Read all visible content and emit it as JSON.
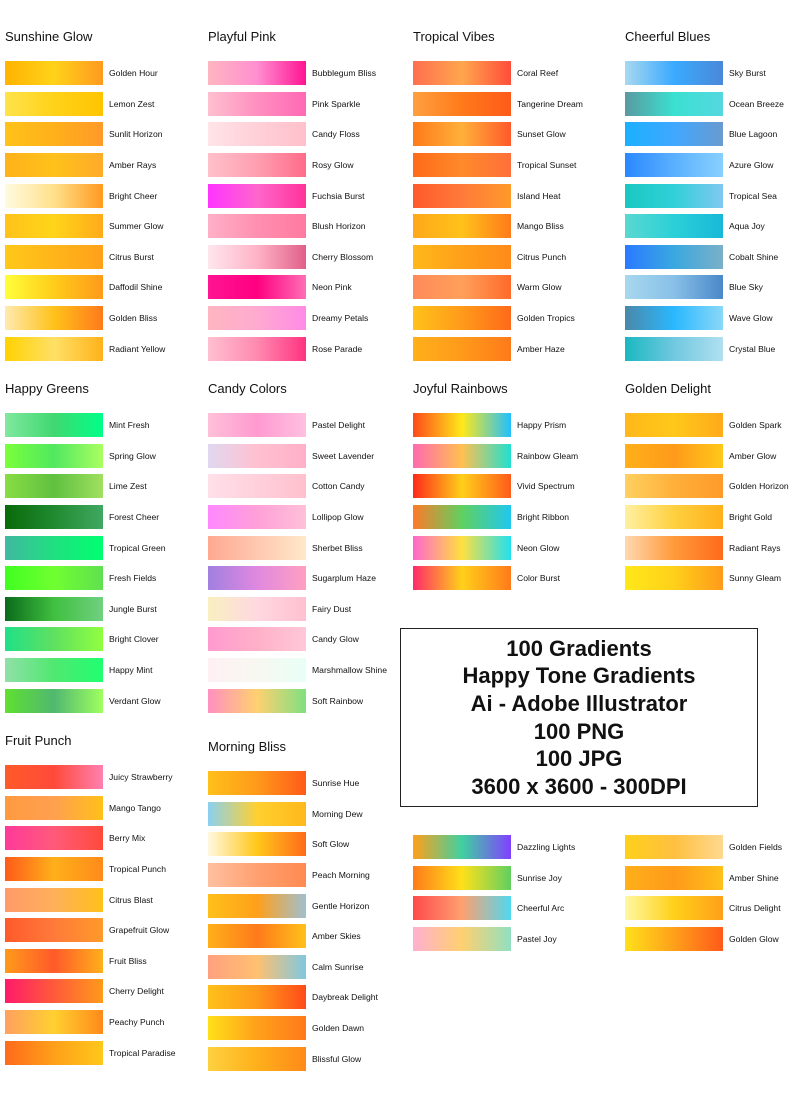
{
  "groups": [
    {
      "title": "Sunshine Glow",
      "items": [
        {
          "label": "Golden Hour",
          "colors": [
            "#ffb300",
            "#ffd21a",
            "#ff9a1f"
          ]
        },
        {
          "label": "Lemon Zest",
          "colors": [
            "#ffe34a",
            "#ffd21a",
            "#ffc400"
          ]
        },
        {
          "label": "Sunlit Horizon",
          "colors": [
            "#ffc21a",
            "#ffb01a",
            "#ff9a2a"
          ]
        },
        {
          "label": "Amber Rays",
          "colors": [
            "#ffb21a",
            "#ffc11a",
            "#ffab2a"
          ]
        },
        {
          "label": "Bright Cheer",
          "colors": [
            "#fffbe0",
            "#ffe08a",
            "#ff9a1f"
          ]
        },
        {
          "label": "Summer Glow",
          "colors": [
            "#ffc21a",
            "#ffd51a",
            "#ffaa1a"
          ]
        },
        {
          "label": "Citrus Burst",
          "colors": [
            "#ffc81a",
            "#ffb51a",
            "#ffa11a"
          ]
        },
        {
          "label": "Daffodil Shine",
          "colors": [
            "#ffff3a",
            "#ffcc1a",
            "#ff9a1a"
          ]
        },
        {
          "label": "Golden Bliss",
          "colors": [
            "#ffeab0",
            "#ffc21a",
            "#ff7a1a"
          ]
        },
        {
          "label": "Radiant Yellow",
          "colors": [
            "#ffd200",
            "#ffe066",
            "#ffb21a"
          ]
        }
      ]
    },
    {
      "title": "Playful Pink",
      "items": [
        {
          "label": "Bubblegum Bliss",
          "colors": [
            "#ffb6c1",
            "#ff8fd0",
            "#ff1493"
          ]
        },
        {
          "label": "Pink Sparkle",
          "colors": [
            "#ffc0d0",
            "#ff8fc0",
            "#ff69b4"
          ]
        },
        {
          "label": "Candy Floss",
          "colors": [
            "#ffe4e8",
            "#ffd0d8",
            "#ffc0cb"
          ]
        },
        {
          "label": "Rosy Glow",
          "colors": [
            "#ffc0cb",
            "#ff9fb0",
            "#ff6b8a"
          ]
        },
        {
          "label": "Fuchsia Burst",
          "colors": [
            "#ff33ff",
            "#ff66cc",
            "#ff3399"
          ]
        },
        {
          "label": "Blush Horizon",
          "colors": [
            "#ffb0c8",
            "#ff8fb0",
            "#ff7aa0"
          ]
        },
        {
          "label": "Cherry Blossom",
          "colors": [
            "#ffe6ee",
            "#ffb3c6",
            "#e0608a"
          ]
        },
        {
          "label": "Neon Pink",
          "colors": [
            "#ff1493",
            "#ff0080",
            "#ff6fb5"
          ]
        },
        {
          "label": "Dreamy Petals",
          "colors": [
            "#ffb6c1",
            "#ffaad0",
            "#ff8ae6"
          ]
        },
        {
          "label": "Rose Parade",
          "colors": [
            "#ffc0d0",
            "#ff8ab0",
            "#ff3380"
          ]
        }
      ]
    },
    {
      "title": "Tropical Vibes",
      "items": [
        {
          "label": "Coral Reef",
          "colors": [
            "#ff6f4f",
            "#ffa64d",
            "#ff4d3a"
          ]
        },
        {
          "label": "Tangerine Dream",
          "colors": [
            "#ffa040",
            "#ff7a1a",
            "#ff5a1a"
          ]
        },
        {
          "label": "Sunset Glow",
          "colors": [
            "#ff7a1a",
            "#ffb03a",
            "#ff5a2a"
          ]
        },
        {
          "label": "Tropical Sunset",
          "colors": [
            "#ff6a1a",
            "#ff8a2a",
            "#ff6f3a"
          ]
        },
        {
          "label": "Island Heat",
          "colors": [
            "#ff5a2a",
            "#ff7a3a",
            "#ff9a2a"
          ]
        },
        {
          "label": "Mango Bliss",
          "colors": [
            "#ffa81a",
            "#ffc21a",
            "#ff7a1a"
          ]
        },
        {
          "label": "Citrus Punch",
          "colors": [
            "#ffb81a",
            "#ffa01a",
            "#ff8a1a"
          ]
        },
        {
          "label": "Warm Glow",
          "colors": [
            "#ff8a5a",
            "#ffa05a",
            "#ff6a2a"
          ]
        },
        {
          "label": "Golden Tropics",
          "colors": [
            "#ffc21a",
            "#ff9a1a",
            "#ff6a1a"
          ]
        },
        {
          "label": "Amber Haze",
          "colors": [
            "#ffb01a",
            "#ff9a1a",
            "#ff7a1a"
          ]
        }
      ]
    },
    {
      "title": "Cheerful Blues",
      "items": [
        {
          "label": "Sky Burst",
          "colors": [
            "#a8d8f0",
            "#3aaaff",
            "#4a88d8"
          ]
        },
        {
          "label": "Ocean Breeze",
          "colors": [
            "#5a9aa0",
            "#3ae0d0",
            "#55d8e0"
          ]
        },
        {
          "label": "Blue Lagoon",
          "colors": [
            "#1ab0ff",
            "#40a8ff",
            "#6a9ad0"
          ]
        },
        {
          "label": "Azure Glow",
          "colors": [
            "#2a88ff",
            "#5ab0ff",
            "#88d0ff"
          ]
        },
        {
          "label": "Tropical Sea",
          "colors": [
            "#1ac8c0",
            "#30d0d8",
            "#80c8f0"
          ]
        },
        {
          "label": "Aqua Joy",
          "colors": [
            "#5ad8d0",
            "#2ad0d8",
            "#18b8d8"
          ]
        },
        {
          "label": "Cobalt Shine",
          "colors": [
            "#2a7aff",
            "#3aa8e0",
            "#7ab0c8"
          ]
        },
        {
          "label": "Blue Sky",
          "colors": [
            "#a8d8ee",
            "#88c0e8",
            "#4a88c8"
          ]
        },
        {
          "label": "Wave Glow",
          "colors": [
            "#4a88a8",
            "#2ab8ff",
            "#8ad8f8"
          ]
        },
        {
          "label": "Crystal Blue",
          "colors": [
            "#1ab8c0",
            "#70c8e0",
            "#b0e0f0"
          ]
        }
      ]
    },
    {
      "title": "Happy Greens",
      "items": [
        {
          "label": "Mint Fresh",
          "colors": [
            "#80e8a0",
            "#40d870",
            "#00ff88"
          ]
        },
        {
          "label": "Spring Glow",
          "colors": [
            "#7aff3a",
            "#50e860",
            "#aaff60"
          ]
        },
        {
          "label": "Lime Zest",
          "colors": [
            "#88dd44",
            "#60c040",
            "#a0e060"
          ]
        },
        {
          "label": "Forest Cheer",
          "colors": [
            "#0a6a0a",
            "#208a30",
            "#40a860"
          ]
        },
        {
          "label": "Tropical Green",
          "colors": [
            "#40b8a0",
            "#20e080",
            "#00ff70"
          ]
        },
        {
          "label": "Fresh Fields",
          "colors": [
            "#40ff20",
            "#70ff30",
            "#60e050"
          ]
        },
        {
          "label": "Jungle Burst",
          "colors": [
            "#0a6a1a",
            "#40c040",
            "#70d080"
          ]
        },
        {
          "label": "Bright Clover",
          "colors": [
            "#20e088",
            "#60e060",
            "#90ff40"
          ]
        },
        {
          "label": "Happy Mint",
          "colors": [
            "#90e0a8",
            "#50e870",
            "#20ff70"
          ]
        },
        {
          "label": "Verdant Glow",
          "colors": [
            "#60e030",
            "#50b870",
            "#a0ff60"
          ]
        }
      ]
    },
    {
      "title": "Candy Colors",
      "items": [
        {
          "label": "Pastel Delight",
          "colors": [
            "#ffc0d8",
            "#ff9ad0",
            "#ffc0e0"
          ]
        },
        {
          "label": "Sweet Lavender",
          "colors": [
            "#e0d8f0",
            "#ffc0d0",
            "#ffb0c8"
          ]
        },
        {
          "label": "Cotton Candy",
          "colors": [
            "#ffe0e8",
            "#ffd0dc",
            "#ffc0cc"
          ]
        },
        {
          "label": "Lollipop Glow",
          "colors": [
            "#ff88ff",
            "#ffa0d8",
            "#ffc0d8"
          ]
        },
        {
          "label": "Sherbet Bliss",
          "colors": [
            "#ffa890",
            "#ffc8b0",
            "#ffe8c8"
          ]
        },
        {
          "label": "Sugarplum Haze",
          "colors": [
            "#a080e0",
            "#e088e0",
            "#ffa0c0"
          ]
        },
        {
          "label": "Fairy Dust",
          "colors": [
            "#f8f0c0",
            "#ffd8e0",
            "#ffc0d0"
          ]
        },
        {
          "label": "Candy Glow",
          "colors": [
            "#ff9ad0",
            "#ffb0c8",
            "#ffc8d8"
          ]
        },
        {
          "label": "Marshmallow Shine",
          "colors": [
            "#fff0f4",
            "#f8f8f0",
            "#e8fff8"
          ]
        },
        {
          "label": "Soft Rainbow",
          "colors": [
            "#ff90c0",
            "#ffd070",
            "#80e080"
          ]
        }
      ]
    },
    {
      "title": "Joyful Rainbows",
      "items": [
        {
          "label": "Happy Prism",
          "colors": [
            "#ff4a1a",
            "#ffe81a",
            "#20c0ff"
          ]
        },
        {
          "label": "Rainbow Gleam",
          "colors": [
            "#ff6ab0",
            "#ffc050",
            "#20e0d0"
          ]
        },
        {
          "label": "Vivid Spectrum",
          "colors": [
            "#ff2a1a",
            "#ffd01a",
            "#ff5a1a"
          ]
        },
        {
          "label": "Bright Ribbon",
          "colors": [
            "#ff7a2a",
            "#60d060",
            "#20c8f0"
          ]
        },
        {
          "label": "Neon Glow",
          "colors": [
            "#ff66cc",
            "#ffe040",
            "#20e0f0"
          ]
        },
        {
          "label": "Color Burst",
          "colors": [
            "#ff2a6a",
            "#ffd01a",
            "#ff7a1a"
          ]
        }
      ]
    },
    {
      "title": "Golden Delight",
      "items": [
        {
          "label": "Golden Spark",
          "colors": [
            "#ffb81a",
            "#ffc81a",
            "#ffaa1a"
          ]
        },
        {
          "label": "Amber Glow",
          "colors": [
            "#ffb01a",
            "#ff9a1a",
            "#ffc81a"
          ]
        },
        {
          "label": "Golden Horizon",
          "colors": [
            "#ffd060",
            "#ffb03a",
            "#ff9a2a"
          ]
        },
        {
          "label": "Bright Gold",
          "colors": [
            "#fff0a0",
            "#ffd040",
            "#ffb01a"
          ]
        },
        {
          "label": "Radiant Rays",
          "colors": [
            "#ffd8b0",
            "#ff9a3a",
            "#ff6a1a"
          ]
        },
        {
          "label": "Sunny Gleam",
          "colors": [
            "#ffe81a",
            "#ffd01a",
            "#ff9a1a"
          ]
        }
      ]
    },
    {
      "title": "Fruit Punch",
      "items": [
        {
          "label": "Juicy Strawberry",
          "colors": [
            "#ff5a2a",
            "#ff4a3a",
            "#ff80b0"
          ]
        },
        {
          "label": "Mango Tango",
          "colors": [
            "#ff9a40",
            "#ffa050",
            "#ffc01a"
          ]
        },
        {
          "label": "Berry Mix",
          "colors": [
            "#ff3a9a",
            "#ff5a7a",
            "#ff4a3a"
          ]
        },
        {
          "label": "Tropical Punch",
          "colors": [
            "#ff5a1a",
            "#ffb01a",
            "#ff8a1a"
          ]
        },
        {
          "label": "Citrus Blast",
          "colors": [
            "#ff9a6a",
            "#ffb05a",
            "#ffc01a"
          ]
        },
        {
          "label": "Grapefruit Glow",
          "colors": [
            "#ff5a2a",
            "#ff7a3a",
            "#ff9a2a"
          ]
        },
        {
          "label": "Fruit Bliss",
          "colors": [
            "#ff9a1a",
            "#ff5a2a",
            "#ffb01a"
          ]
        },
        {
          "label": "Cherry Delight",
          "colors": [
            "#ff1a6a",
            "#ff5a3a",
            "#ff9a1a"
          ]
        },
        {
          "label": "Peachy Punch",
          "colors": [
            "#ffa060",
            "#ffd030",
            "#ff8a1a"
          ]
        },
        {
          "label": "Tropical Paradise",
          "colors": [
            "#ff6a1a",
            "#ffa01a",
            "#ffc81a"
          ]
        }
      ]
    },
    {
      "title": "Morning Bliss",
      "items": [
        {
          "label": "Sunrise Hue",
          "colors": [
            "#ffc01a",
            "#ff9a1a",
            "#ff5a1a"
          ]
        },
        {
          "label": "Morning Dew",
          "colors": [
            "#8ad0f0",
            "#ffd030",
            "#ffb81a"
          ]
        },
        {
          "label": "Soft Glow",
          "colors": [
            "#fff8e0",
            "#ffc81a",
            "#ff6a1a"
          ]
        },
        {
          "label": "Peach Morning",
          "colors": [
            "#ffc0a0",
            "#ffa070",
            "#ff8a50"
          ]
        },
        {
          "label": "Gentle Horizon",
          "colors": [
            "#ffc01a",
            "#ffa01a",
            "#a0c0d0"
          ]
        },
        {
          "label": "Amber Skies",
          "colors": [
            "#ffb01a",
            "#ff7a1a",
            "#ffc01a"
          ]
        },
        {
          "label": "Calm Sunrise",
          "colors": [
            "#ffa080",
            "#ffc070",
            "#80c8e0"
          ]
        },
        {
          "label": "Daybreak Delight",
          "colors": [
            "#ffc01a",
            "#ff9a1a",
            "#ff4a1a"
          ]
        },
        {
          "label": "Golden Dawn",
          "colors": [
            "#ffe01a",
            "#ffa01a",
            "#ff7a1a"
          ]
        },
        {
          "label": "Blissful Glow",
          "colors": [
            "#ffd040",
            "#ffb01a",
            "#ff8a1a"
          ]
        }
      ]
    },
    {
      "title": "",
      "items": [
        {
          "label": "Dazzling Lights",
          "colors": [
            "#ffa01a",
            "#40d0a0",
            "#8040ff"
          ]
        },
        {
          "label": "Sunrise Joy",
          "colors": [
            "#ff7a1a",
            "#ffe01a",
            "#60d060"
          ]
        },
        {
          "label": "Cheerful Arc",
          "colors": [
            "#ff4a4a",
            "#ffa070",
            "#50d8f0"
          ]
        },
        {
          "label": "Pastel Joy",
          "colors": [
            "#ffb0d0",
            "#ffd070",
            "#90e0c0"
          ]
        }
      ]
    },
    {
      "title": "",
      "items": [
        {
          "label": "Golden Fields",
          "colors": [
            "#ffd01a",
            "#ffc040",
            "#ffd890"
          ]
        },
        {
          "label": "Amber Shine",
          "colors": [
            "#ffb01a",
            "#ff9a1a",
            "#ffc01a"
          ]
        },
        {
          "label": "Citrus Delight",
          "colors": [
            "#fff8a0",
            "#ffd01a",
            "#ffa01a"
          ]
        },
        {
          "label": "Golden Glow",
          "colors": [
            "#ffe01a",
            "#ffa01a",
            "#ff5a1a"
          ]
        }
      ]
    }
  ],
  "info": {
    "lines": [
      "100 Gradients",
      "Happy Tone Gradients",
      "Ai - Adobe Illustrator",
      "100 PNG",
      "100 JPG",
      "3600 x 3600 - 300DPI"
    ]
  }
}
